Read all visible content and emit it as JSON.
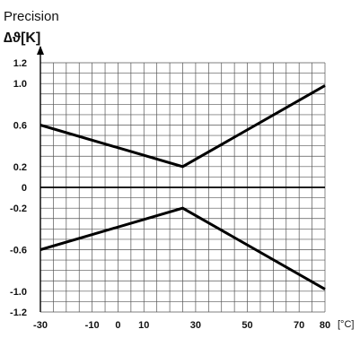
{
  "chart_data": {
    "type": "line",
    "title": "Precision",
    "ylabel": "∆ϑ[K]",
    "xlabel": "[°C]",
    "xlim": [
      -30,
      80
    ],
    "ylim": [
      -1.2,
      1.2
    ],
    "x_ticks": [
      -30,
      -10,
      0,
      10,
      30,
      50,
      70,
      80
    ],
    "x_tick_labels": [
      "-30",
      "-10",
      "0",
      "10",
      "30",
      "50",
      "70",
      "80"
    ],
    "y_ticks": [
      1.2,
      1.0,
      0.6,
      0.2,
      0,
      -0.2,
      -0.6,
      -1.0,
      -1.2
    ],
    "y_tick_labels": [
      "1.2",
      "1.0",
      "0.6",
      "0.2",
      "0",
      "-0.2",
      "-0.6",
      "-1.0",
      "-1.2"
    ],
    "grid": true,
    "series": [
      {
        "x": [
          -30,
          25,
          80
        ],
        "values": [
          0.6,
          0.2,
          0.98
        ]
      },
      {
        "x": [
          -30,
          80
        ],
        "values": [
          0,
          0
        ]
      },
      {
        "x": [
          -30,
          25,
          80
        ],
        "values": [
          -0.6,
          -0.2,
          -0.98
        ]
      }
    ]
  }
}
